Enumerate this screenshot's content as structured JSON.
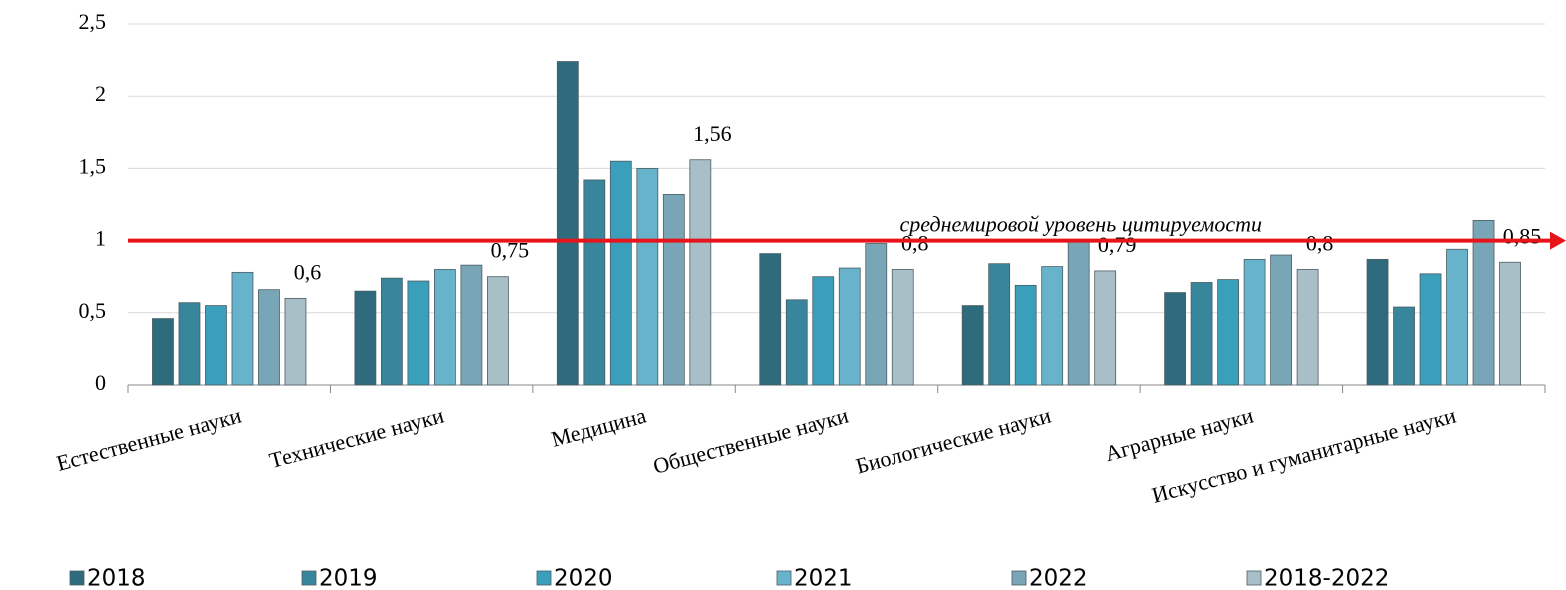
{
  "chart_data": {
    "type": "bar",
    "categories": [
      "Естественные науки",
      "Технические науки",
      "Медицина",
      "Общественные науки",
      "Биологические науки",
      "Аграрные науки",
      "Искусство и гуманитарные науки"
    ],
    "series": [
      {
        "name": "2018",
        "color": "#2d6b7d",
        "values": [
          0.46,
          0.65,
          2.24,
          0.91,
          0.55,
          0.64,
          0.87
        ]
      },
      {
        "name": "2019",
        "color": "#37869c",
        "values": [
          0.57,
          0.74,
          1.42,
          0.59,
          0.84,
          0.71,
          0.54
        ]
      },
      {
        "name": "2020",
        "color": "#3a9fbb",
        "values": [
          0.55,
          0.72,
          1.55,
          0.75,
          0.69,
          0.73,
          0.77
        ]
      },
      {
        "name": "2021",
        "color": "#67b3cb",
        "values": [
          0.78,
          0.8,
          1.5,
          0.81,
          0.82,
          0.87,
          0.94
        ]
      },
      {
        "name": "2022",
        "color": "#78a6b6",
        "values": [
          0.66,
          0.83,
          1.32,
          0.98,
          1.0,
          0.9,
          1.14
        ]
      },
      {
        "name": "2018-2022",
        "color": "#a9bfc8",
        "values": [
          0.6,
          0.75,
          1.56,
          0.8,
          0.79,
          0.8,
          0.85
        ],
        "value_labels": [
          "0,6",
          "0,75",
          "1,56",
          "0,8",
          "0,79",
          "0,8",
          "0,85"
        ]
      }
    ],
    "ylim": [
      0,
      2.5
    ],
    "yticks": [
      0,
      {
        "value": 0.5,
        "label": "0,5"
      },
      1,
      {
        "value": 1.5,
        "label": "1,5"
      },
      2,
      {
        "value": 2.5,
        "label": "2,5"
      }
    ],
    "grid": true,
    "reference_line": {
      "value": 1,
      "label": "среднемировой уровень цитируемости",
      "color": "#e8141b"
    },
    "legend": "bottom"
  }
}
